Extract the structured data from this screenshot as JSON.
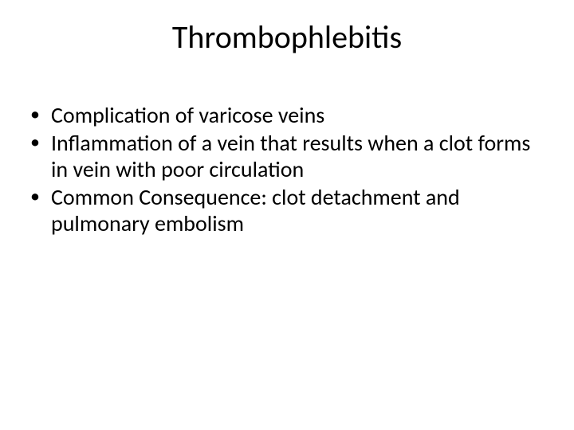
{
  "slide": {
    "title": "Thrombophlebitis",
    "bullets": [
      "Complication of varicose veins",
      "Inflammation of a vein that results when a clot forms in vein with poor circulation",
      "Common Consequence: clot detachment and pulmonary embolism"
    ],
    "colors": {
      "background": "#ffffff",
      "text": "#000000",
      "bullet": "#000000"
    },
    "typography": {
      "title_fontsize": 40,
      "body_fontsize": 28,
      "font_family": "Calibri"
    }
  }
}
